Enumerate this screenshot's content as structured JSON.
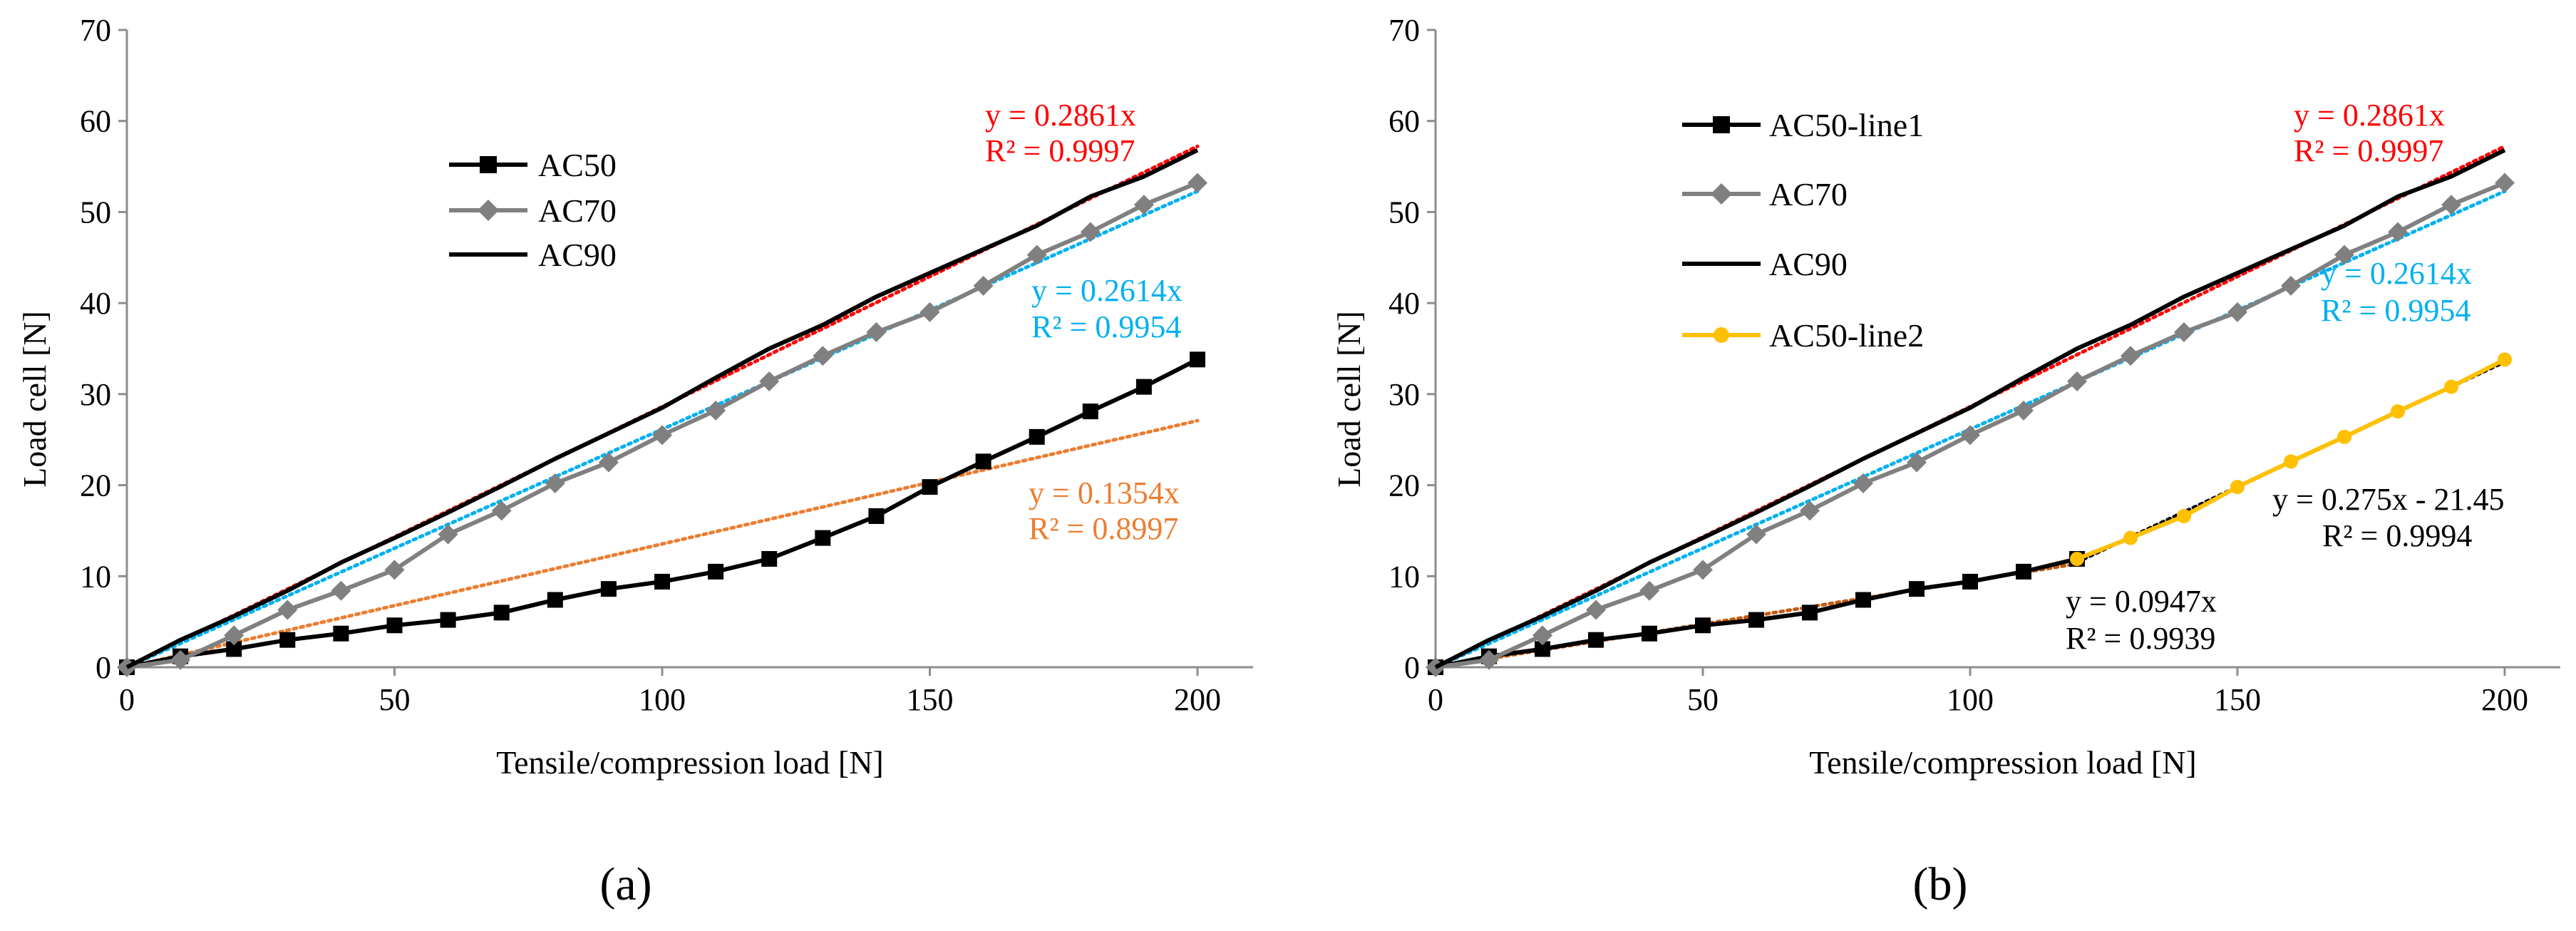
{
  "chart_data": [
    {
      "type": "line",
      "panel_label": "(a)",
      "xlabel": "Tensile/compression load [N]",
      "ylabel": "Load cell [N]",
      "xlim": [
        0,
        200
      ],
      "ylim": [
        0,
        70
      ],
      "xticks": [
        0,
        50,
        100,
        150,
        200
      ],
      "yticks": [
        0,
        10,
        20,
        30,
        40,
        50,
        60,
        70
      ],
      "x": [
        0,
        10,
        20,
        30,
        40,
        50,
        60,
        70,
        80,
        90,
        100,
        110,
        120,
        130,
        140,
        150,
        160,
        170,
        180,
        190,
        200
      ],
      "series": [
        {
          "name": "AC50",
          "color": "#000000",
          "marker": "square",
          "values": [
            0,
            1.2,
            2.0,
            3.0,
            3.7,
            4.6,
            5.2,
            6.0,
            7.4,
            8.6,
            9.4,
            10.5,
            11.9,
            14.2,
            16.6,
            19.8,
            22.6,
            25.3,
            28.1,
            30.8,
            33.8
          ]
        },
        {
          "name": "AC70",
          "color": "#808080",
          "marker": "diamond",
          "values": [
            0,
            0.8,
            3.5,
            6.3,
            8.4,
            10.7,
            14.6,
            17.2,
            20.2,
            22.5,
            25.5,
            28.2,
            31.4,
            34.2,
            36.8,
            39.0,
            41.9,
            45.3,
            47.8,
            50.8,
            53.2
          ]
        },
        {
          "name": "AC90",
          "color": "#000000",
          "marker": "none",
          "values": [
            0,
            3.0,
            5.6,
            8.4,
            11.5,
            14.2,
            17.0,
            19.9,
            22.9,
            25.7,
            28.5,
            31.8,
            35.0,
            37.6,
            40.7,
            43.3,
            45.9,
            48.5,
            51.7,
            53.9,
            56.8
          ]
        }
      ],
      "trendlines": [
        {
          "color": "#ff0000",
          "slope": 0.2861,
          "intercept": 0,
          "x_range": [
            0,
            200
          ],
          "equation": "y = 0.2861x",
          "r2": "R² = 0.9997"
        },
        {
          "color": "#00b0f0",
          "slope": 0.2614,
          "intercept": 0,
          "x_range": [
            0,
            200
          ],
          "equation": "y = 0.2614x",
          "r2": "R² = 0.9954"
        },
        {
          "color": "#ed7d31",
          "slope": 0.1354,
          "intercept": 0,
          "x_range": [
            0,
            200
          ],
          "equation": "y = 0.1354x",
          "r2": "R² = 0.8997"
        }
      ],
      "legend": [
        "AC50",
        "AC70",
        "AC90"
      ]
    },
    {
      "type": "line",
      "panel_label": "(b)",
      "xlabel": "Tensile/compression load [N]",
      "ylabel": "Load cell [N]",
      "xlim": [
        0,
        200
      ],
      "ylim": [
        0,
        70
      ],
      "xticks": [
        0,
        50,
        100,
        150,
        200
      ],
      "yticks": [
        0,
        10,
        20,
        30,
        40,
        50,
        60,
        70
      ],
      "series": [
        {
          "name": "AC50-line1",
          "color": "#000000",
          "marker": "square",
          "x": [
            0,
            10,
            20,
            30,
            40,
            50,
            60,
            70,
            80,
            90,
            100,
            110,
            120
          ],
          "values": [
            0,
            1.2,
            2.0,
            3.0,
            3.7,
            4.6,
            5.2,
            6.0,
            7.4,
            8.6,
            9.4,
            10.5,
            11.9
          ]
        },
        {
          "name": "AC70",
          "color": "#808080",
          "marker": "diamond",
          "x": [
            0,
            10,
            20,
            30,
            40,
            50,
            60,
            70,
            80,
            90,
            100,
            110,
            120,
            130,
            140,
            150,
            160,
            170,
            180,
            190,
            200
          ],
          "values": [
            0,
            0.8,
            3.5,
            6.3,
            8.4,
            10.7,
            14.6,
            17.2,
            20.2,
            22.5,
            25.5,
            28.2,
            31.4,
            34.2,
            36.8,
            39.0,
            41.9,
            45.3,
            47.8,
            50.8,
            53.2
          ]
        },
        {
          "name": "AC90",
          "color": "#000000",
          "marker": "none",
          "x": [
            0,
            10,
            20,
            30,
            40,
            50,
            60,
            70,
            80,
            90,
            100,
            110,
            120,
            130,
            140,
            150,
            160,
            170,
            180,
            190,
            200
          ],
          "values": [
            0,
            3.0,
            5.6,
            8.4,
            11.5,
            14.2,
            17.0,
            19.9,
            22.9,
            25.7,
            28.5,
            31.8,
            35.0,
            37.6,
            40.7,
            43.3,
            45.9,
            48.5,
            51.7,
            53.9,
            56.8
          ]
        },
        {
          "name": "AC50-line2",
          "color": "#ffc000",
          "marker": "circle",
          "x": [
            120,
            130,
            140,
            150,
            160,
            170,
            180,
            190,
            200
          ],
          "values": [
            11.9,
            14.2,
            16.6,
            19.8,
            22.6,
            25.3,
            28.1,
            30.8,
            33.8
          ]
        }
      ],
      "trendlines": [
        {
          "color": "#ff0000",
          "slope": 0.2861,
          "intercept": 0,
          "x_range": [
            0,
            200
          ],
          "equation": "y = 0.2861x",
          "r2": "R² = 0.9997"
        },
        {
          "color": "#00b0f0",
          "slope": 0.2614,
          "intercept": 0,
          "x_range": [
            0,
            200
          ],
          "equation": "y = 0.2614x",
          "r2": "R² = 0.9954"
        },
        {
          "color": "#c55a11",
          "slope": 0.0947,
          "intercept": 0,
          "x_range": [
            0,
            120
          ],
          "equation": "y = 0.0947x",
          "r2": "R² = 0.9939"
        },
        {
          "color": "#000000",
          "slope": 0.275,
          "intercept": -21.45,
          "x_range": [
            120,
            200
          ],
          "equation": "y = 0.275x - 21.45",
          "r2": "R² = 0.9994"
        }
      ],
      "legend": [
        "AC50-line1",
        "AC70",
        "AC90",
        "AC50-line2"
      ]
    }
  ]
}
